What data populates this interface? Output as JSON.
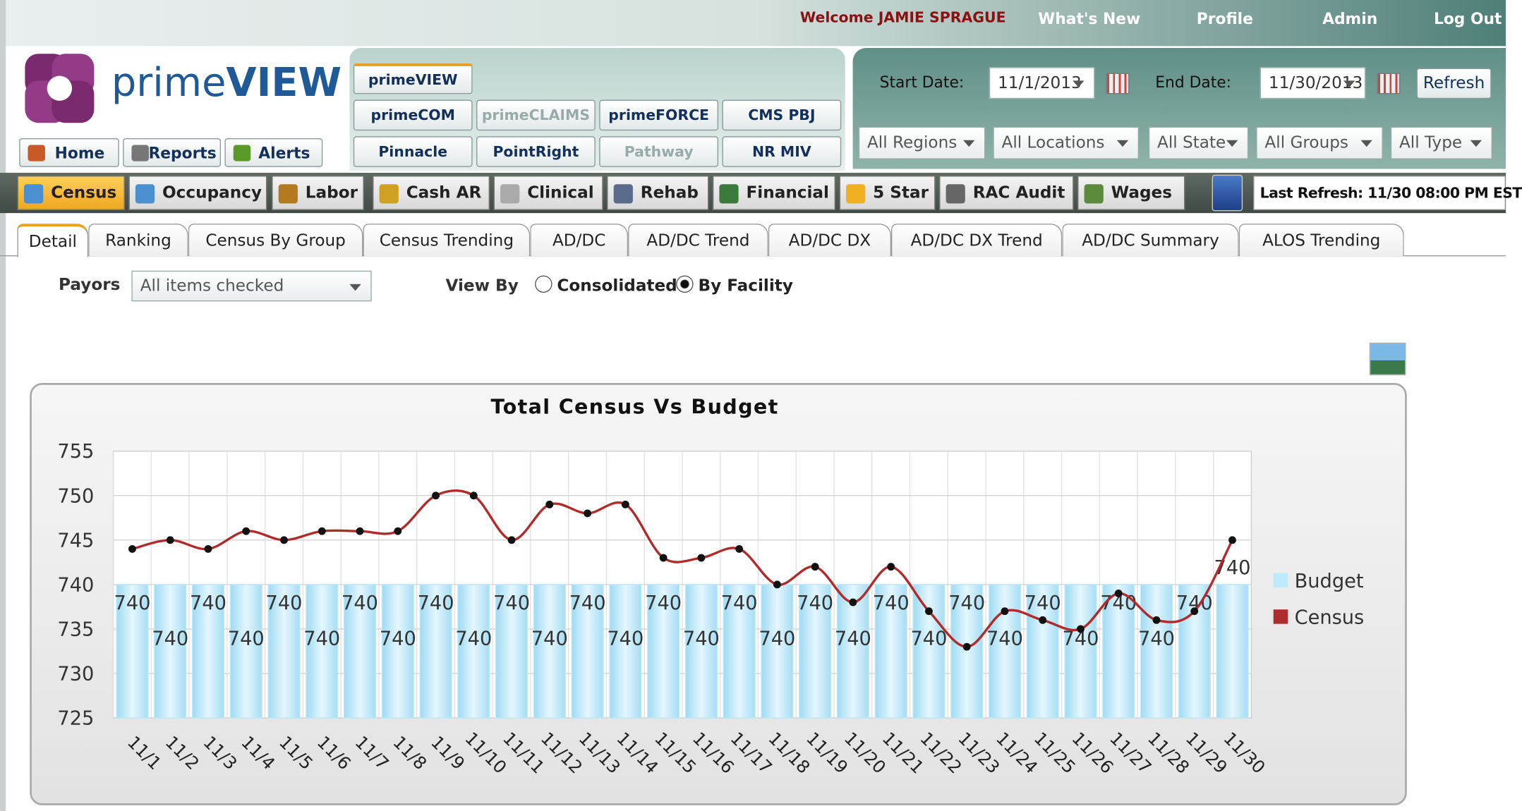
{
  "header": {
    "welcome": "Welcome JAMIE SPRAGUE",
    "links": [
      "What's New",
      "Profile",
      "Admin",
      "Log Out"
    ]
  },
  "logo": {
    "prime": "prime",
    "view": "VIEW"
  },
  "product_tabs": [
    "primeVIEW",
    "primeCOM",
    "primeCLAIMS",
    "primeFORCE",
    "CMS PBJ",
    "Pinnacle",
    "PointRight",
    "Pathway",
    "NR MIV"
  ],
  "quick_links": [
    "Home",
    "Reports",
    "Alerts"
  ],
  "date_filter": {
    "start_label": "Start Date:",
    "start": "11/1/2013",
    "end_label": "End Date:",
    "end": "11/30/2013",
    "refresh": "Refresh"
  },
  "filters": [
    "All Regions",
    "All Locations",
    "All State",
    "All Groups",
    "All Type"
  ],
  "modules": [
    "Census",
    "Occupancy",
    "Labor",
    "Cash AR",
    "Clinical",
    "Rehab",
    "Financial",
    "5 Star",
    "RAC Audit",
    "Wages"
  ],
  "last_refresh": "Last Refresh: 11/30 08:00 PM EST",
  "sub_tabs": [
    "Detail",
    "Ranking",
    "Census By Group",
    "Census Trending",
    "AD/DC",
    "AD/DC Trend",
    "AD/DC DX",
    "AD/DC DX Trend",
    "AD/DC Summary",
    "ALOS Trending"
  ],
  "payors": {
    "label": "Payors",
    "value": "All items checked"
  },
  "view_by": {
    "label": "View By",
    "options": [
      "Consolidated",
      "By Facility"
    ],
    "selected": "By Facility"
  },
  "chart_data": {
    "type": "bar_line",
    "title": "Total Census Vs Budget",
    "categories": [
      "11/1",
      "11/2",
      "11/3",
      "11/4",
      "11/5",
      "11/6",
      "11/7",
      "11/8",
      "11/9",
      "11/10",
      "11/11",
      "11/12",
      "11/13",
      "11/14",
      "11/15",
      "11/16",
      "11/17",
      "11/18",
      "11/19",
      "11/20",
      "11/21",
      "11/22",
      "11/23",
      "11/24",
      "11/25",
      "11/26",
      "11/27",
      "11/28",
      "11/29",
      "11/30"
    ],
    "series": [
      {
        "name": "Budget",
        "type": "bar",
        "color": "#bfeafb",
        "values": [
          740,
          740,
          740,
          740,
          740,
          740,
          740,
          740,
          740,
          740,
          740,
          740,
          740,
          740,
          740,
          740,
          740,
          740,
          740,
          740,
          740,
          740,
          740,
          740,
          740,
          740,
          740,
          740,
          740,
          740
        ]
      },
      {
        "name": "Census",
        "type": "line",
        "color": "#b02c2c",
        "values": [
          744,
          745,
          744,
          746,
          745,
          746,
          746,
          746,
          750,
          750,
          745,
          749,
          748,
          749,
          743,
          743,
          744,
          740,
          742,
          738,
          742,
          737,
          733,
          737,
          736,
          735,
          739,
          736,
          737,
          745
        ]
      }
    ],
    "ylim": [
      725,
      755
    ],
    "yticks": [
      725,
      730,
      735,
      740,
      745,
      750,
      755
    ],
    "grid": true,
    "legend": "right"
  }
}
